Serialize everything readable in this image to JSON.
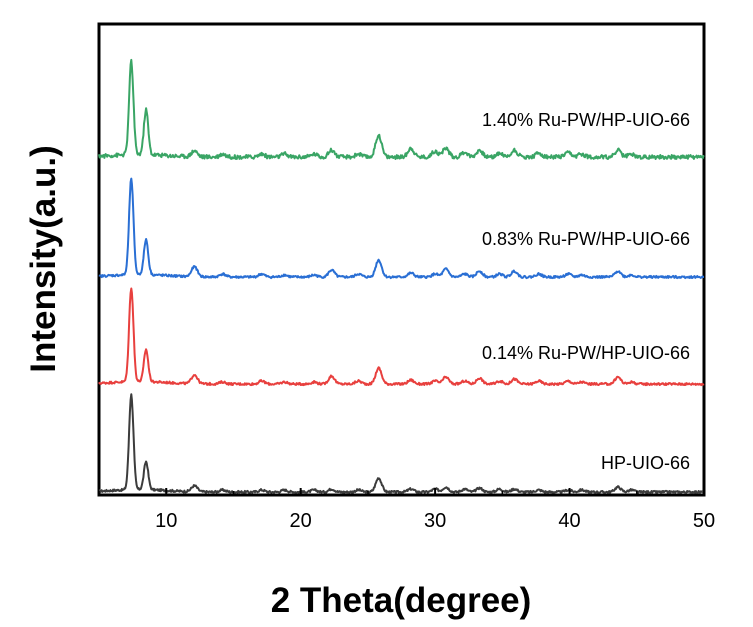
{
  "chart_data": {
    "type": "line",
    "title": "",
    "xlabel": "2 Theta(degree)",
    "ylabel": "Intensity(a.u.)",
    "xlim": [
      5,
      50
    ],
    "xticks": [
      10,
      20,
      30,
      40,
      50
    ],
    "yticks_shown": false,
    "grid": false,
    "legend": "inline-labels",
    "peaks_2theta": [
      7.4,
      8.5,
      12.1,
      14.2,
      17.1,
      18.8,
      21.0,
      22.3,
      24.3,
      25.8,
      28.2,
      30.0,
      30.8,
      32.2,
      33.3,
      34.8,
      35.9,
      37.7,
      39.9,
      40.9,
      43.6,
      44.6
    ],
    "series": [
      {
        "name": "HP-UIO-66",
        "color": "#3c3c3c",
        "label_2theta": 44.6,
        "peaks": [
          95,
          28,
          6,
          2,
          2,
          2,
          2,
          3,
          2,
          14,
          3,
          3,
          5,
          3,
          4,
          3,
          3,
          2,
          2,
          2,
          5,
          2
        ]
      },
      {
        "name": "0.14% Ru-PW/HP-UIO-66",
        "color": "#e8403e",
        "label_2theta": 36.4,
        "peaks": [
          94,
          32,
          9,
          2,
          3,
          2,
          2,
          8,
          3,
          16,
          4,
          3,
          7,
          3,
          6,
          3,
          5,
          3,
          3,
          2,
          7,
          2
        ]
      },
      {
        "name": "0.83% Ru-PW/HP-UIO-66",
        "color": "#2a6fd4",
        "label_2theta": 36.4,
        "peaks": [
          96,
          35,
          10,
          3,
          3,
          2,
          2,
          7,
          3,
          17,
          4,
          3,
          8,
          3,
          6,
          3,
          6,
          3,
          3,
          2,
          6,
          2
        ]
      },
      {
        "name": "1.40% Ru-PW/HP-UIO-66",
        "color": "#3aa565",
        "label_2theta": 36.4,
        "peaks": [
          93,
          45,
          6,
          3,
          3,
          3,
          3,
          7,
          3,
          22,
          9,
          6,
          9,
          5,
          7,
          4,
          7,
          4,
          4,
          3,
          7,
          3
        ]
      }
    ]
  }
}
